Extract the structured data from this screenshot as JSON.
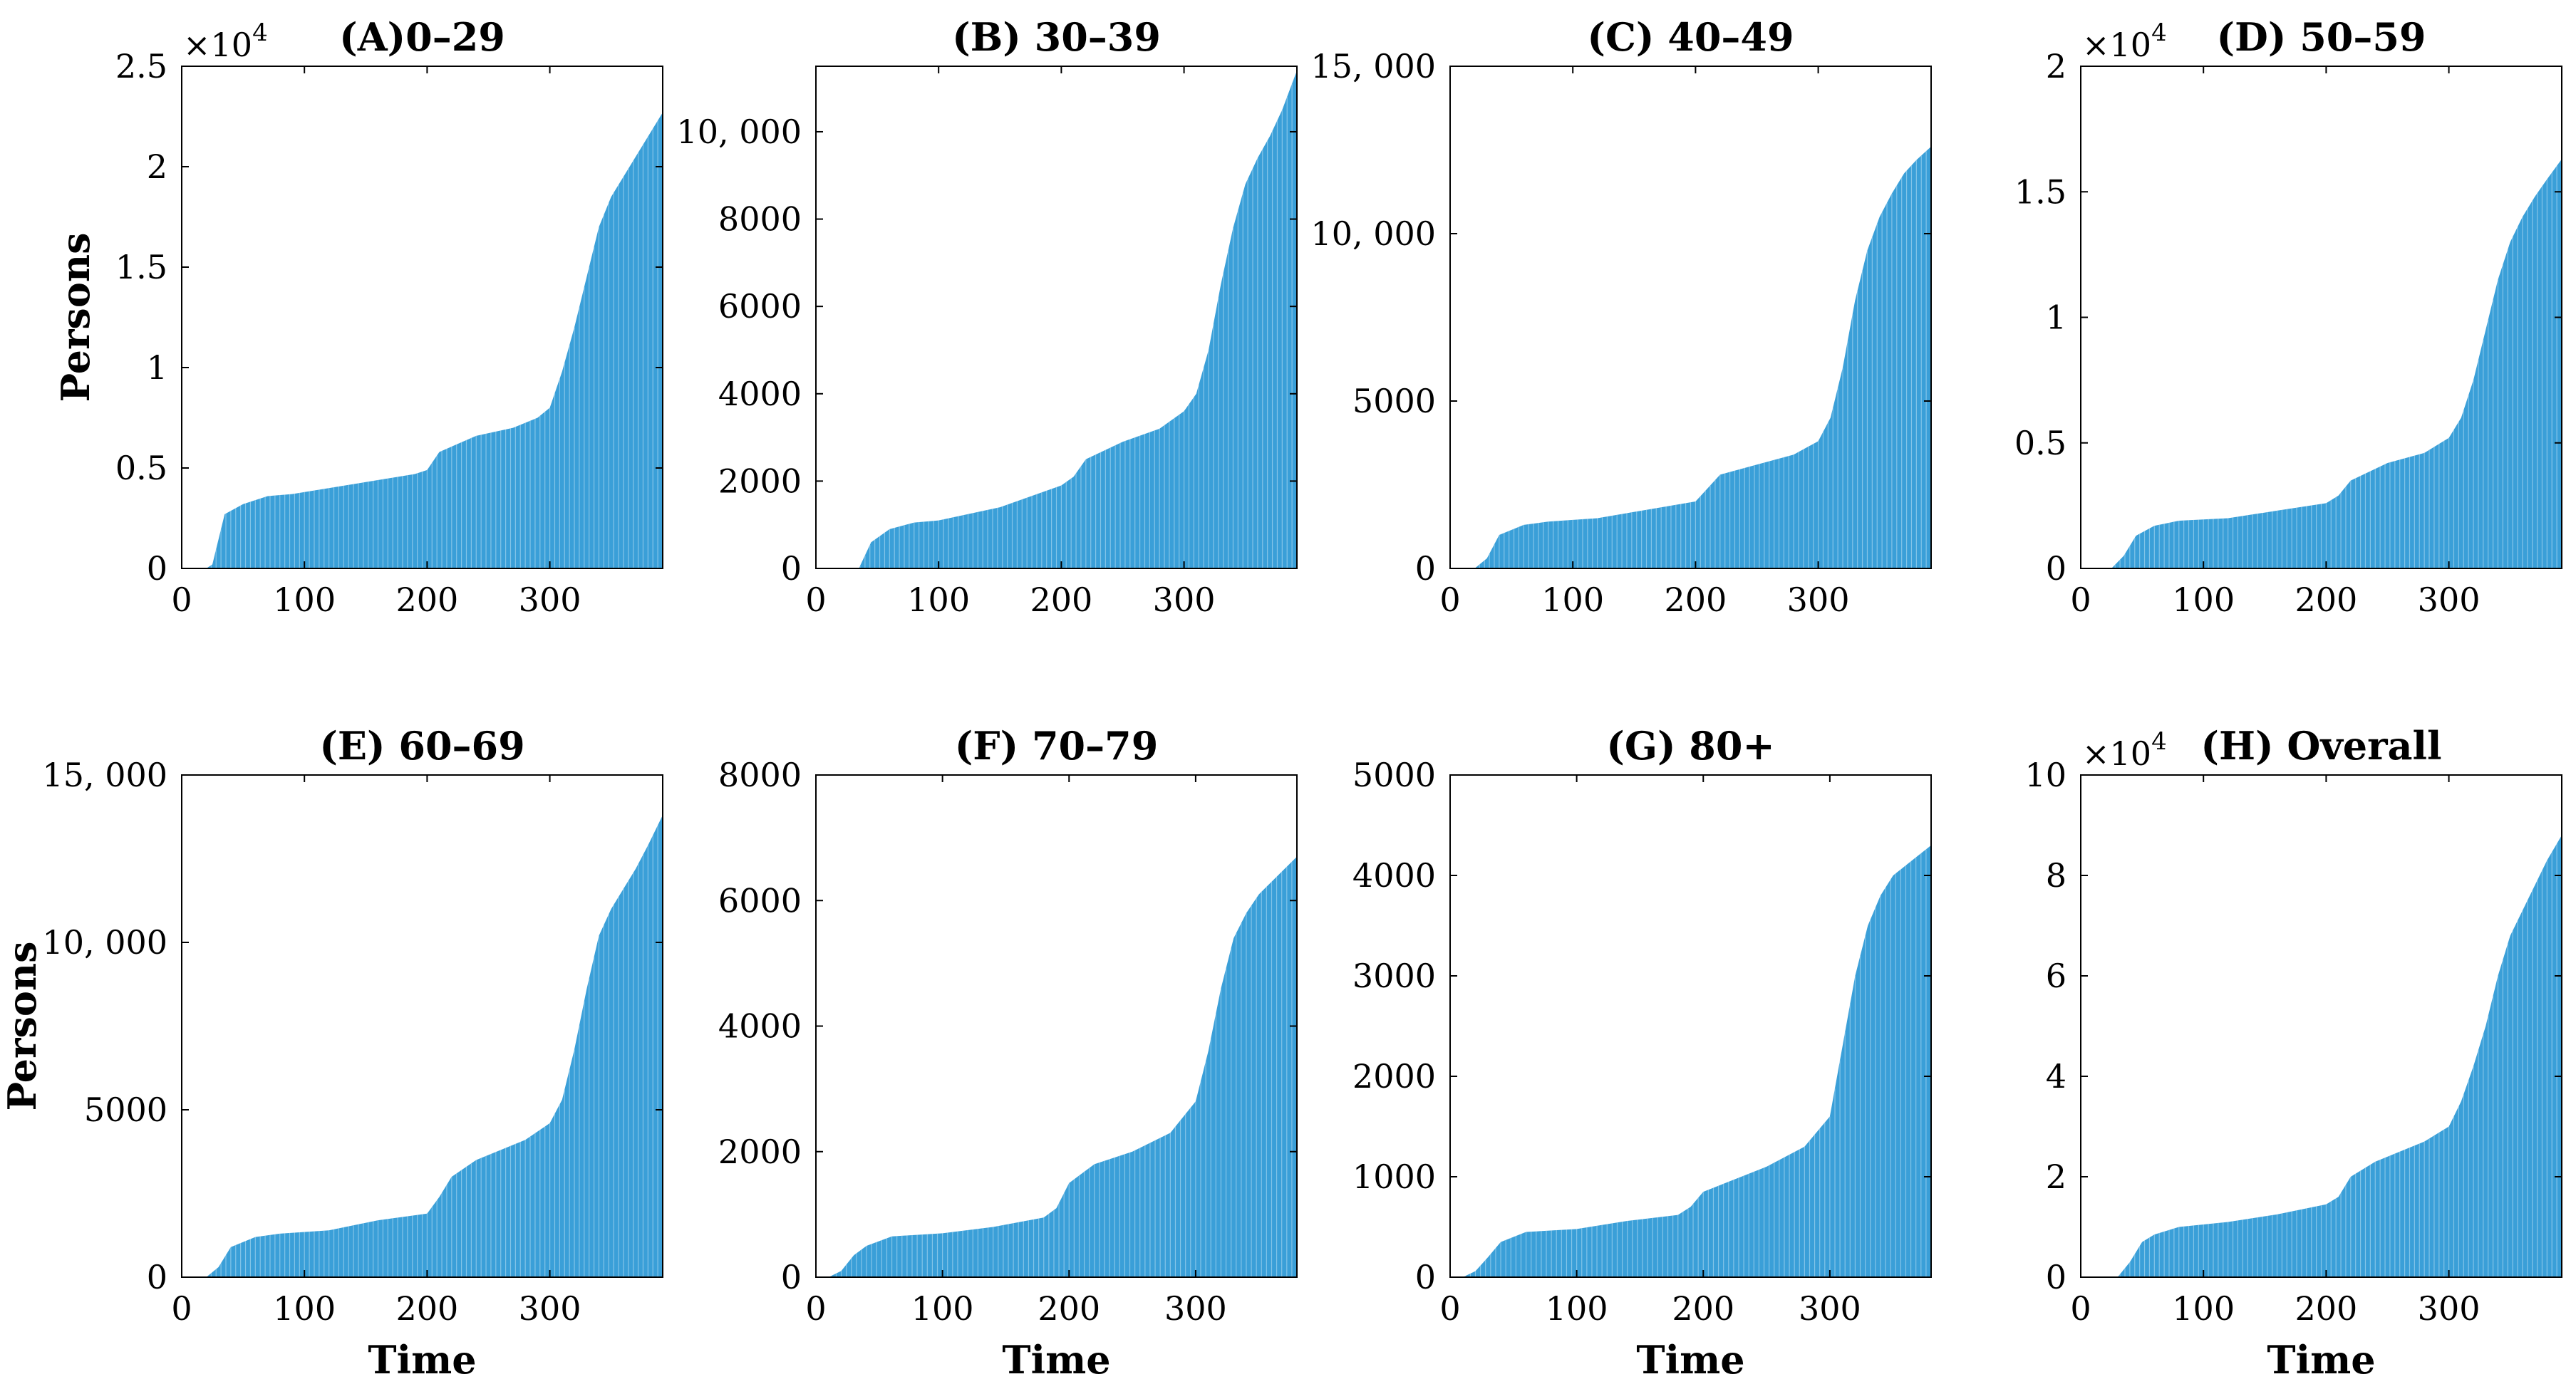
{
  "chart_data": [
    {
      "type": "bar",
      "title": "(A)0–29",
      "ylabel": "Persons",
      "xlabel": "",
      "xlim": [
        0,
        392
      ],
      "ylim": [
        0,
        2.5
      ],
      "multiplier": "×10",
      "multiplier_exp": "4",
      "xticks": [
        "0",
        "100",
        "200",
        "300"
      ],
      "yticks": [
        "0",
        "0.5",
        "1",
        "1.5",
        "2",
        "2.5"
      ],
      "x": [
        0,
        20,
        25,
        35,
        50,
        70,
        90,
        150,
        190,
        200,
        210,
        240,
        270,
        290,
        300,
        310,
        320,
        330,
        340,
        350,
        360,
        370,
        380,
        392
      ],
      "values": [
        0,
        0,
        0.02,
        0.27,
        0.32,
        0.36,
        0.37,
        0.43,
        0.47,
        0.49,
        0.58,
        0.66,
        0.7,
        0.75,
        0.8,
        0.98,
        1.2,
        1.45,
        1.7,
        1.85,
        1.95,
        2.05,
        2.15,
        2.27
      ]
    },
    {
      "type": "bar",
      "title": "(B) 30–39",
      "ylabel": "",
      "xlabel": "",
      "xlim": [
        0,
        392
      ],
      "ylim": [
        0,
        11500
      ],
      "multiplier": "",
      "multiplier_exp": "",
      "xticks": [
        "0",
        "100",
        "200",
        "300"
      ],
      "yticks": [
        "0",
        "2000",
        "4000",
        "6000",
        "8000",
        "10, 000"
      ],
      "x": [
        0,
        35,
        45,
        60,
        80,
        100,
        150,
        200,
        210,
        220,
        250,
        280,
        300,
        310,
        320,
        330,
        340,
        350,
        360,
        370,
        380,
        392
      ],
      "values": [
        0,
        0,
        600,
        900,
        1050,
        1100,
        1400,
        1900,
        2100,
        2500,
        2900,
        3200,
        3600,
        4000,
        5000,
        6500,
        7800,
        8800,
        9400,
        9900,
        10500,
        11400
      ]
    },
    {
      "type": "bar",
      "title": "(C) 40–49",
      "ylabel": "",
      "xlabel": "",
      "xlim": [
        0,
        392
      ],
      "ylim": [
        0,
        15000
      ],
      "multiplier": "",
      "multiplier_exp": "",
      "xticks": [
        "0",
        "100",
        "200",
        "300"
      ],
      "yticks": [
        "0",
        "5000",
        "10, 000",
        "15, 000"
      ],
      "x": [
        0,
        20,
        30,
        40,
        60,
        80,
        120,
        160,
        200,
        210,
        220,
        250,
        280,
        300,
        310,
        320,
        330,
        340,
        350,
        360,
        370,
        380,
        392
      ],
      "values": [
        0,
        0,
        300,
        1000,
        1300,
        1400,
        1500,
        1750,
        2000,
        2400,
        2800,
        3100,
        3400,
        3800,
        4500,
        6000,
        8000,
        9500,
        10500,
        11200,
        11800,
        12200,
        12600
      ]
    },
    {
      "type": "bar",
      "title": "(D) 50–59",
      "ylabel": "",
      "xlabel": "",
      "xlim": [
        0,
        392
      ],
      "ylim": [
        0,
        2
      ],
      "multiplier": "×10",
      "multiplier_exp": "4",
      "xticks": [
        "0",
        "100",
        "200",
        "300"
      ],
      "yticks": [
        "0",
        "0.5",
        "1",
        "1.5",
        "2"
      ],
      "x": [
        0,
        25,
        35,
        45,
        60,
        80,
        120,
        160,
        200,
        210,
        220,
        250,
        280,
        300,
        310,
        320,
        330,
        340,
        350,
        360,
        370,
        380,
        392
      ],
      "values": [
        0,
        0,
        0.05,
        0.13,
        0.17,
        0.19,
        0.2,
        0.23,
        0.26,
        0.29,
        0.35,
        0.42,
        0.46,
        0.52,
        0.6,
        0.75,
        0.95,
        1.15,
        1.3,
        1.4,
        1.48,
        1.55,
        1.63
      ]
    },
    {
      "type": "bar",
      "title": "(E) 60–69",
      "ylabel": "Persons",
      "xlabel": "Time",
      "xlim": [
        0,
        392
      ],
      "ylim": [
        0,
        15000
      ],
      "multiplier": "",
      "multiplier_exp": "",
      "xticks": [
        "0",
        "100",
        "200",
        "300"
      ],
      "yticks": [
        "0",
        "5000",
        "10, 000",
        "15, 000"
      ],
      "x": [
        0,
        20,
        30,
        40,
        60,
        80,
        120,
        160,
        200,
        210,
        220,
        240,
        260,
        280,
        300,
        310,
        320,
        330,
        340,
        350,
        360,
        370,
        380,
        392
      ],
      "values": [
        0,
        0,
        300,
        900,
        1200,
        1300,
        1400,
        1700,
        1900,
        2400,
        3000,
        3500,
        3800,
        4100,
        4600,
        5300,
        6800,
        8600,
        10200,
        11000,
        11600,
        12200,
        12900,
        13800
      ]
    },
    {
      "type": "bar",
      "title": "(F) 70–79",
      "ylabel": "",
      "xlabel": "Time",
      "xlim": [
        0,
        380
      ],
      "ylim": [
        0,
        8000
      ],
      "multiplier": "",
      "multiplier_exp": "",
      "xticks": [
        "0",
        "100",
        "200",
        "300"
      ],
      "yticks": [
        "0",
        "2000",
        "4000",
        "6000",
        "8000"
      ],
      "x": [
        0,
        10,
        20,
        30,
        40,
        60,
        100,
        140,
        180,
        190,
        200,
        220,
        250,
        280,
        300,
        310,
        320,
        330,
        340,
        350,
        360,
        370,
        380
      ],
      "values": [
        0,
        0,
        100,
        350,
        500,
        650,
        700,
        800,
        950,
        1100,
        1500,
        1800,
        2000,
        2300,
        2800,
        3600,
        4600,
        5400,
        5800,
        6100,
        6300,
        6500,
        6700
      ]
    },
    {
      "type": "bar",
      "title": "(G) 80+",
      "ylabel": "",
      "xlabel": "Time",
      "xlim": [
        0,
        380
      ],
      "ylim": [
        0,
        5000
      ],
      "multiplier": "",
      "multiplier_exp": "",
      "xticks": [
        "0",
        "100",
        "200",
        "300"
      ],
      "yticks": [
        "0",
        "1000",
        "2000",
        "3000",
        "4000",
        "5000"
      ],
      "x": [
        0,
        10,
        20,
        30,
        40,
        60,
        100,
        140,
        180,
        190,
        200,
        220,
        250,
        280,
        300,
        310,
        320,
        330,
        340,
        350,
        360,
        370,
        380
      ],
      "values": [
        0,
        0,
        60,
        200,
        350,
        450,
        480,
        560,
        620,
        700,
        850,
        950,
        1100,
        1300,
        1600,
        2300,
        3000,
        3500,
        3800,
        4000,
        4100,
        4200,
        4300
      ]
    },
    {
      "type": "bar",
      "title": "(H) Overall",
      "ylabel": "",
      "xlabel": "Time",
      "xlim": [
        0,
        392
      ],
      "ylim": [
        0,
        10
      ],
      "multiplier": "×10",
      "multiplier_exp": "4",
      "xticks": [
        "0",
        "100",
        "200",
        "300"
      ],
      "yticks": [
        "0",
        "2",
        "4",
        "6",
        "8",
        "10"
      ],
      "x": [
        0,
        30,
        40,
        50,
        60,
        80,
        120,
        160,
        200,
        210,
        220,
        240,
        260,
        280,
        300,
        310,
        320,
        330,
        340,
        350,
        360,
        370,
        380,
        392
      ],
      "values": [
        0,
        0,
        0.3,
        0.7,
        0.85,
        1.0,
        1.1,
        1.25,
        1.45,
        1.6,
        2.0,
        2.3,
        2.5,
        2.7,
        3.0,
        3.5,
        4.2,
        5.0,
        6.0,
        6.8,
        7.3,
        7.8,
        8.3,
        8.8
      ]
    }
  ],
  "style": {
    "bar_color": "#3a9fd8",
    "stripe_color": "#bfe2f5"
  }
}
